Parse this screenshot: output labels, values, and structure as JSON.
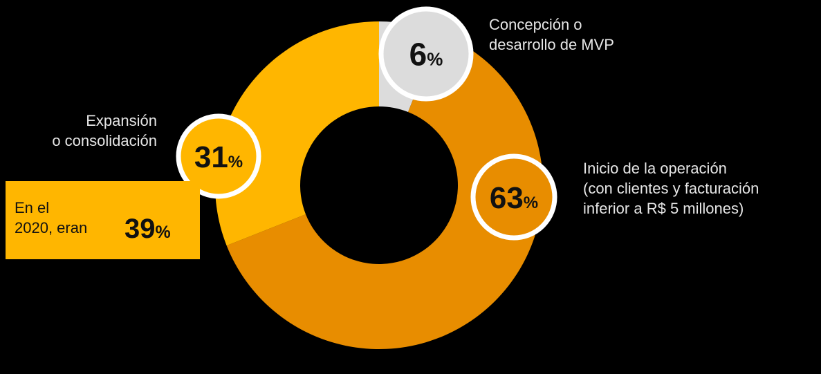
{
  "chart_data": {
    "type": "pie",
    "donut": true,
    "slices": [
      {
        "value": 6,
        "label_lines": [
          "Concepción o",
          "desarrollo de MVP"
        ],
        "color": "#DCDCDC"
      },
      {
        "value": 63,
        "label_lines": [
          "Inicio de la operación",
          "(con clientes y facturación",
          "inferior a R$ 5 millones)"
        ],
        "color": "#E88D00"
      },
      {
        "value": 31,
        "label_lines": [
          "Expansión",
          "o consolidación"
        ],
        "color": "#FFB600"
      }
    ],
    "value_suffix": "%",
    "callout": {
      "text_lines": [
        "En el",
        "2020, eran"
      ],
      "value": 39,
      "suffix": "%",
      "color": "#FFB600"
    },
    "badge_border_color": "#FFFFFF",
    "background": "#000000"
  }
}
